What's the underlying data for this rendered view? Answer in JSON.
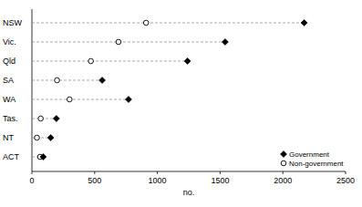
{
  "chart_data": {
    "type": "dot",
    "orientation": "horizontal",
    "categories": [
      "NSW",
      "Vic.",
      "Qld",
      "SA",
      "WA",
      "Tas.",
      "NT",
      "ACT"
    ],
    "series": [
      {
        "name": "Government",
        "color": "#000000",
        "marker": "diamond",
        "values": [
          2170,
          1540,
          1240,
          560,
          770,
          195,
          150,
          90
        ]
      },
      {
        "name": "Non-government",
        "color": "#000000",
        "marker": "circle",
        "values": [
          910,
          690,
          470,
          200,
          300,
          70,
          40,
          65
        ]
      }
    ],
    "x_label": "no.",
    "xlim": [
      0,
      2500
    ],
    "xticks": [
      0,
      500,
      1000,
      1500,
      2000,
      2500
    ],
    "legend": "lower right",
    "grid": false
  }
}
